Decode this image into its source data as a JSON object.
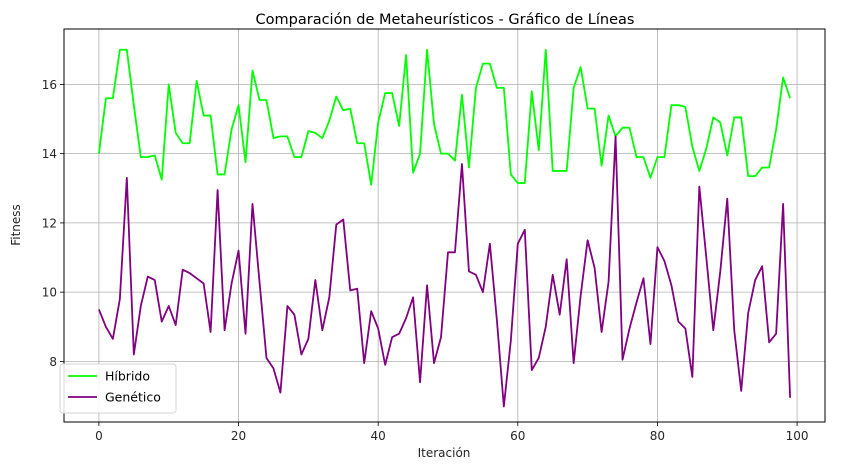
{
  "chart_data": {
    "type": "line",
    "title": "Comparación de Metaheurísticos - Gráfico de Líneas",
    "xlabel": "Iteración",
    "ylabel": "Fitness",
    "xlim": [
      -5,
      104
    ],
    "ylim": [
      6.25,
      17.6
    ],
    "xticks": [
      0,
      20,
      40,
      60,
      80,
      100
    ],
    "yticks": [
      8,
      10,
      12,
      14,
      16
    ],
    "grid": true,
    "legend_position": "lower-left",
    "x": [
      0,
      1,
      2,
      3,
      4,
      5,
      6,
      7,
      8,
      9,
      10,
      11,
      12,
      13,
      14,
      15,
      16,
      17,
      18,
      19,
      20,
      21,
      22,
      23,
      24,
      25,
      26,
      27,
      28,
      29,
      30,
      31,
      32,
      33,
      34,
      35,
      36,
      37,
      38,
      39,
      40,
      41,
      42,
      43,
      44,
      45,
      46,
      47,
      48,
      49,
      50,
      51,
      52,
      53,
      54,
      55,
      56,
      57,
      58,
      59,
      60,
      61,
      62,
      63,
      64,
      65,
      66,
      67,
      68,
      69,
      70,
      71,
      72,
      73,
      74,
      75,
      76,
      77,
      78,
      79,
      80,
      81,
      82,
      83,
      84,
      85,
      86,
      87,
      88,
      89,
      90,
      91,
      92,
      93,
      94,
      95,
      96,
      97,
      98,
      99
    ],
    "series": [
      {
        "name": "Híbrido",
        "color": "#00ff00",
        "values": [
          14.0,
          15.6,
          15.6,
          17.0,
          17.0,
          15.4,
          13.9,
          13.9,
          13.95,
          13.25,
          16.0,
          14.6,
          14.3,
          14.3,
          16.1,
          15.1,
          15.1,
          13.4,
          13.4,
          14.7,
          15.4,
          13.75,
          16.4,
          15.55,
          15.55,
          14.45,
          14.5,
          14.5,
          13.9,
          13.9,
          14.65,
          14.6,
          14.45,
          14.95,
          15.65,
          15.25,
          15.3,
          14.3,
          14.3,
          13.1,
          14.9,
          15.75,
          15.75,
          14.8,
          16.85,
          13.45,
          14.0,
          17.0,
          14.85,
          14.0,
          14.0,
          13.8,
          15.7,
          13.6,
          15.9,
          16.6,
          16.6,
          15.9,
          15.9,
          13.4,
          13.15,
          13.15,
          15.8,
          14.1,
          17.0,
          13.5,
          13.5,
          13.5,
          15.9,
          16.5,
          15.3,
          15.3,
          13.65,
          15.1,
          14.5,
          14.75,
          14.75,
          13.9,
          13.9,
          13.3,
          13.9,
          13.9,
          15.4,
          15.4,
          15.35,
          14.2,
          13.5,
          14.15,
          15.05,
          14.9,
          13.95,
          15.05,
          15.05,
          13.35,
          13.35,
          13.6,
          13.6,
          14.7,
          16.2,
          15.6
        ]
      },
      {
        "name": "Genético",
        "color": "#800080",
        "values": [
          9.5,
          9.0,
          8.65,
          9.8,
          13.3,
          8.2,
          9.6,
          10.45,
          10.35,
          9.15,
          9.6,
          9.05,
          10.65,
          10.55,
          10.4,
          10.25,
          8.85,
          12.95,
          8.9,
          10.25,
          11.2,
          8.8,
          12.55,
          10.3,
          8.1,
          7.8,
          7.1,
          9.6,
          9.35,
          8.2,
          8.65,
          10.35,
          8.9,
          9.85,
          11.95,
          12.1,
          10.05,
          10.1,
          7.95,
          9.45,
          8.95,
          7.9,
          8.7,
          8.8,
          9.25,
          9.85,
          7.4,
          10.2,
          7.95,
          8.7,
          11.15,
          11.15,
          13.7,
          10.6,
          10.5,
          10.0,
          11.4,
          9.2,
          6.7,
          8.6,
          11.4,
          11.8,
          7.75,
          8.1,
          9.0,
          10.5,
          9.35,
          10.95,
          7.95,
          9.9,
          11.5,
          10.7,
          8.85,
          10.3,
          14.5,
          8.05,
          8.95,
          9.7,
          10.4,
          8.5,
          11.3,
          10.9,
          10.2,
          9.15,
          8.95,
          7.55,
          13.05,
          11.0,
          8.9,
          10.6,
          12.7,
          8.9,
          7.15,
          9.4,
          10.35,
          10.75,
          8.55,
          8.8,
          12.55,
          6.95
        ]
      }
    ]
  }
}
